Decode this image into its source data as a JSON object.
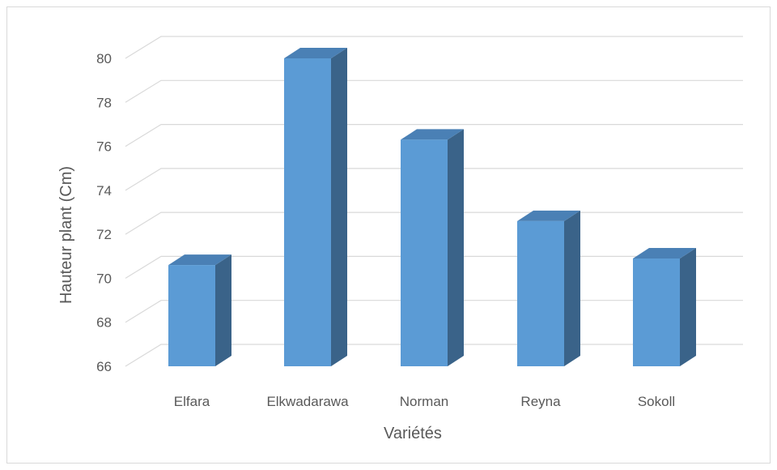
{
  "chart_data": {
    "type": "bar",
    "style": "3d-column",
    "categories": [
      "Elfara",
      "Elkwadarawa",
      "Norman",
      "Reyna",
      "Sokoll"
    ],
    "values": [
      70.6,
      80.0,
      76.3,
      72.6,
      70.9
    ],
    "title": "",
    "xlabel": "Variétés",
    "ylabel": "Hauteur plant (Cm)",
    "ylim": [
      66,
      80
    ],
    "yticks": [
      66,
      68,
      70,
      72,
      74,
      76,
      78,
      80
    ],
    "grid": true,
    "legend": "none",
    "colors": {
      "bar_front": "#5b9bd5",
      "bar_top": "#4a80b5",
      "bar_side": "#3a6389",
      "grid": "#d9d9d9",
      "text": "#595959"
    }
  }
}
